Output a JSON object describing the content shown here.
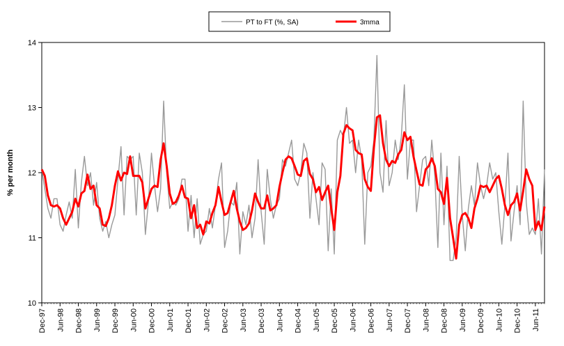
{
  "chart_data": {
    "type": "line",
    "title": "",
    "xlabel": "",
    "ylabel": "% per month",
    "ylim": [
      10,
      14
    ],
    "yticks": [
      "10",
      "11",
      "12",
      "13",
      "14"
    ],
    "legend_position": "top-center",
    "x_start": "Dec-97",
    "x_end": "Dec-11",
    "xticks": [
      "Dec-97",
      "Jun-98",
      "Dec-98",
      "Jun-99",
      "Dec-99",
      "Jun-00",
      "Dec-00",
      "Jun-01",
      "Dec-01",
      "Jun-02",
      "Dec-02",
      "Jun-03",
      "Dec-03",
      "Jun-04",
      "Dec-04",
      "Jun-05",
      "Dec-05",
      "Jun-06",
      "Dec-06",
      "Jun-07",
      "Dec-07",
      "Jun-08",
      "Dec-08",
      "Jun-09",
      "Dec-09",
      "Jun-10",
      "Dec-10",
      "Jun-11"
    ],
    "series": [
      {
        "name": "PT to FT (%, SA)",
        "color": "#999999",
        "values": [
          12.05,
          11.75,
          11.45,
          11.3,
          11.6,
          11.6,
          11.2,
          11.1,
          11.35,
          11.55,
          11.3,
          12.05,
          11.15,
          11.85,
          12.25,
          11.8,
          12.0,
          11.5,
          11.85,
          11.3,
          11.1,
          11.25,
          11.0,
          11.2,
          11.35,
          11.9,
          12.4,
          11.35,
          12.25,
          12.2,
          12.25,
          11.35,
          12.3,
          12.0,
          11.05,
          11.55,
          12.3,
          11.8,
          11.4,
          11.75,
          13.1,
          12.0,
          11.45,
          11.55,
          11.5,
          11.6,
          11.9,
          11.9,
          11.1,
          11.65,
          11.0,
          11.6,
          10.9,
          11.05,
          11.1,
          11.45,
          11.15,
          11.5,
          11.9,
          12.15,
          10.85,
          11.1,
          11.55,
          11.5,
          11.85,
          10.75,
          11.4,
          11.2,
          11.5,
          11.0,
          11.3,
          12.2,
          11.4,
          10.9,
          12.05,
          11.6,
          11.3,
          11.5,
          11.6,
          12.2,
          12.1,
          12.3,
          12.5,
          11.9,
          11.8,
          12.0,
          12.45,
          12.3,
          11.3,
          12.0,
          11.6,
          11.2,
          12.15,
          12.05,
          10.8,
          11.75,
          10.75,
          12.5,
          12.65,
          12.55,
          13.0,
          12.45,
          12.5,
          12.0,
          12.5,
          12.2,
          10.9,
          12.0,
          12.1,
          12.5,
          13.8,
          12.0,
          11.7,
          12.8,
          11.8,
          12.0,
          12.5,
          12.2,
          12.55,
          13.35,
          11.9,
          12.5,
          12.5,
          11.4,
          11.8,
          12.2,
          12.25,
          11.8,
          12.5,
          11.95,
          10.85,
          12.3,
          11.2,
          12.1,
          10.65,
          10.65,
          11.0,
          12.25,
          11.35,
          10.8,
          11.45,
          11.8,
          11.5,
          12.15,
          11.8,
          11.6,
          11.8,
          12.15,
          11.9,
          12.0,
          11.4,
          10.9,
          11.5,
          12.3,
          10.95,
          11.4,
          11.8,
          11.2,
          13.1,
          11.55,
          11.05,
          11.15,
          11.05,
          11.6,
          10.75,
          12.05
        ]
      },
      {
        "name": "3mma",
        "color": "#ff0000",
        "values": [
          12.05,
          11.95,
          11.65,
          11.5,
          11.48,
          11.5,
          11.45,
          11.3,
          11.2,
          11.3,
          11.4,
          11.6,
          11.48,
          11.68,
          11.72,
          11.97,
          11.75,
          11.8,
          11.5,
          11.45,
          11.2,
          11.18,
          11.3,
          11.5,
          11.8,
          12.02,
          11.88,
          12.0,
          11.98,
          12.25,
          11.95,
          11.95,
          11.95,
          11.85,
          11.45,
          11.6,
          11.75,
          11.8,
          11.78,
          12.2,
          12.45,
          12.1,
          11.68,
          11.52,
          11.55,
          11.65,
          11.8,
          11.62,
          11.6,
          11.3,
          11.5,
          11.15,
          11.2,
          11.05,
          11.25,
          11.22,
          11.38,
          11.5,
          11.78,
          11.55,
          11.35,
          11.38,
          11.55,
          11.72,
          11.45,
          11.25,
          11.12,
          11.15,
          11.22,
          11.42,
          11.68,
          11.55,
          11.45,
          11.45,
          11.65,
          11.42,
          11.45,
          11.5,
          11.78,
          12.0,
          12.2,
          12.25,
          12.22,
          12.1,
          11.97,
          11.95,
          12.18,
          12.22,
          11.98,
          11.9,
          11.7,
          11.78,
          11.58,
          11.7,
          11.8,
          11.45,
          11.12,
          11.7,
          11.95,
          12.6,
          12.73,
          12.68,
          12.65,
          12.35,
          12.3,
          12.28,
          11.9,
          11.78,
          11.72,
          12.38,
          12.85,
          12.88,
          12.45,
          12.2,
          12.1,
          12.18,
          12.15,
          12.28,
          12.35,
          12.62,
          12.5,
          12.55,
          12.25,
          12.03,
          11.82,
          11.8,
          12.05,
          12.1,
          12.22,
          12.1,
          11.75,
          11.7,
          11.52,
          11.92,
          11.3,
          11.0,
          10.68,
          11.2,
          11.35,
          11.38,
          11.3,
          11.15,
          11.45,
          11.6,
          11.8,
          11.78,
          11.8,
          11.7,
          11.8,
          11.9,
          11.95,
          11.75,
          11.5,
          11.35,
          11.5,
          11.55,
          11.68,
          11.42,
          11.72,
          12.05,
          11.9,
          11.8,
          11.12,
          11.25,
          11.12,
          11.48
        ]
      }
    ]
  }
}
